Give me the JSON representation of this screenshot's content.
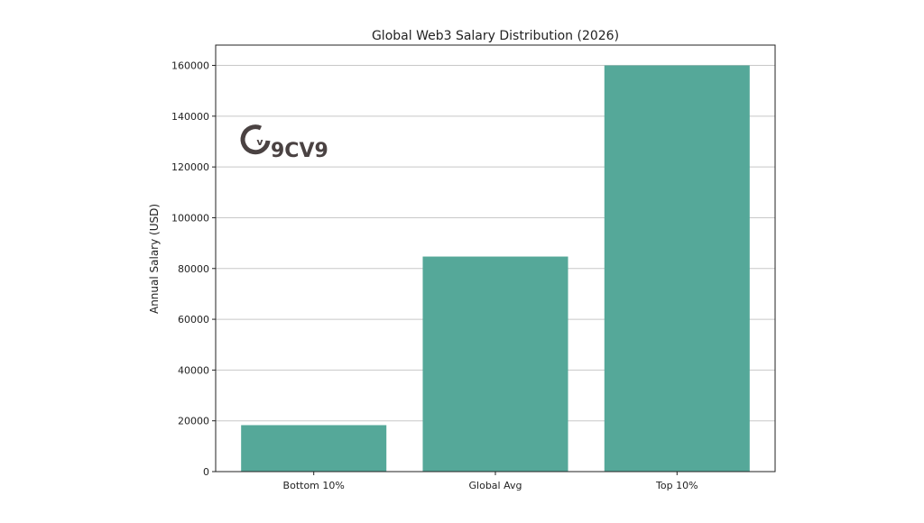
{
  "chart_data": {
    "type": "bar",
    "title": "Global Web3 Salary Distribution (2026)",
    "xlabel": "",
    "ylabel": "Annual Salary (USD)",
    "categories": [
      "Bottom 10%",
      "Global Avg",
      "Top 10%"
    ],
    "values": [
      18300,
      84700,
      160000
    ],
    "ylim": [
      0,
      168000
    ],
    "yticks": [
      0,
      20000,
      40000,
      60000,
      80000,
      100000,
      120000,
      140000,
      160000
    ],
    "grid": "horizontal",
    "bar_color": "#55a899"
  },
  "watermark": {
    "text": "9CV9",
    "color": "#4a4242"
  }
}
